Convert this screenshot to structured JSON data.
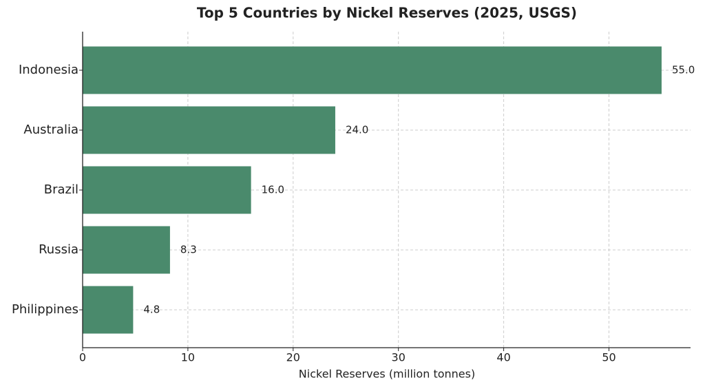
{
  "chart_data": {
    "type": "barh",
    "title": "Top 5 Countries by Nickel Reserves (2025, USGS)",
    "x_label": "Nickel Reserves (million tonnes)",
    "categories": [
      "Indonesia",
      "Australia",
      "Brazil",
      "Russia",
      "Philippines"
    ],
    "values": [
      55.0,
      24.0,
      16.0,
      8.3,
      4.8
    ],
    "value_labels": [
      "55.0",
      "24.0",
      "16.0",
      "8.3",
      "4.8"
    ],
    "color": "#4a8a6c",
    "xlim": [
      0,
      57.75
    ],
    "xticks": [
      0,
      10,
      20,
      30,
      40,
      50
    ],
    "grid": true
  }
}
